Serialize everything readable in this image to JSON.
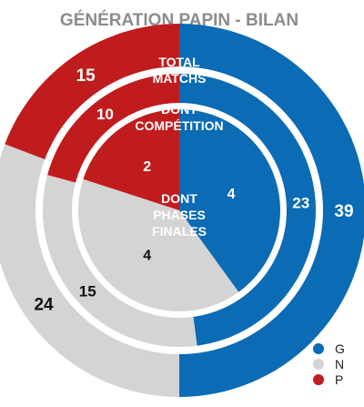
{
  "chart_data": {
    "type": "pie",
    "title": "GÉNÉRATION PAPIN - BILAN",
    "categories": [
      "G",
      "N",
      "P"
    ],
    "series": [
      {
        "name": "TOTAL MATCHS",
        "values": [
          39,
          24,
          15
        ]
      },
      {
        "name": "DONT COMPÉTITION",
        "values": [
          23,
          15,
          10
        ]
      },
      {
        "name": "DONT PHASES FINALES",
        "values": [
          4,
          4,
          2
        ]
      }
    ],
    "legend": {
      "position": "bottom-right",
      "items": [
        "G",
        "N",
        "P"
      ]
    },
    "colors": {
      "G": "#0b6bb5",
      "N": "#d4d4d4",
      "P": "#c01c1e"
    }
  },
  "labels": {
    "outer": [
      "TOTAL",
      "MATCHS"
    ],
    "middle": [
      "DONT",
      "COMPÉTITION"
    ],
    "inner": [
      "DONT",
      "PHASES",
      "FINALES"
    ]
  }
}
